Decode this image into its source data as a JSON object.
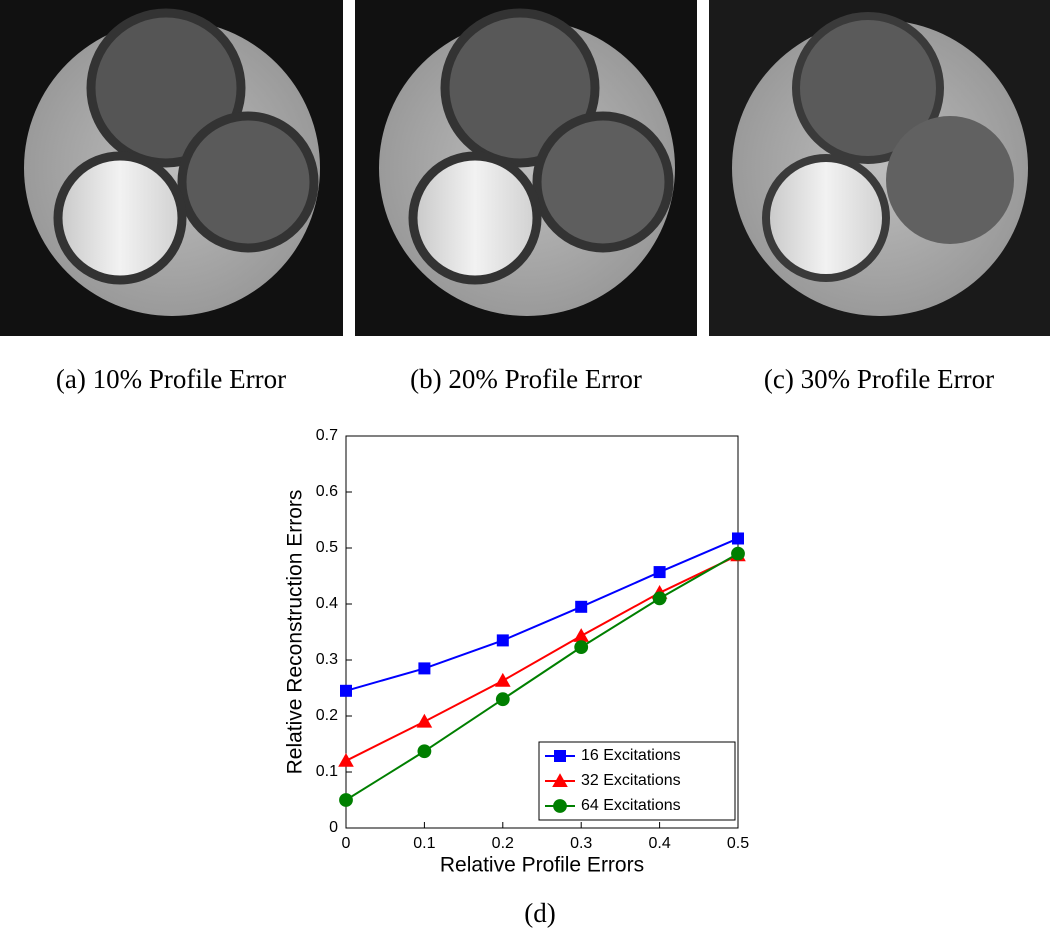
{
  "subfigures": [
    {
      "caption": "(a) 10% Profile Error"
    },
    {
      "caption": "(b) 20% Profile Error"
    },
    {
      "caption": "(c) 30% Profile Error"
    }
  ],
  "chart_data": {
    "type": "line",
    "caption": "(d)",
    "xlabel": "Relative Profile Errors",
    "ylabel": "Relative Reconstruction Errors",
    "x": [
      0,
      0.1,
      0.2,
      0.3,
      0.4,
      0.5
    ],
    "series": [
      {
        "name": "16 Excitations",
        "color": "#0000ff",
        "marker": "square",
        "values": [
          0.245,
          0.285,
          0.335,
          0.395,
          0.457,
          0.517
        ]
      },
      {
        "name": "32 Excitations",
        "color": "#ff0000",
        "marker": "triangle",
        "values": [
          0.12,
          0.19,
          0.263,
          0.343,
          0.42,
          0.487
        ]
      },
      {
        "name": "64 Excitations",
        "color": "#007f00",
        "marker": "circle",
        "values": [
          0.05,
          0.137,
          0.23,
          0.323,
          0.41,
          0.49
        ]
      }
    ],
    "xlim": [
      0,
      0.5
    ],
    "xticks": [
      0,
      0.1,
      0.2,
      0.3,
      0.4,
      0.5
    ],
    "ylim": [
      0,
      0.7
    ],
    "yticks": [
      0,
      0.1,
      0.2,
      0.3,
      0.4,
      0.5,
      0.6,
      0.7
    ],
    "legend": "lower right"
  }
}
